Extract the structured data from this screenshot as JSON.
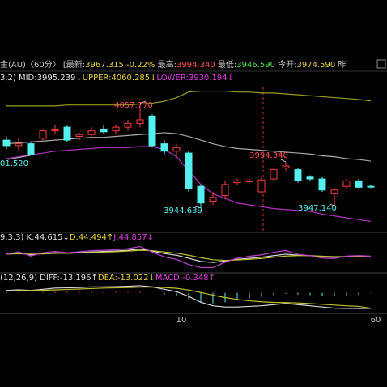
{
  "header": {
    "segments": [
      {
        "text": "金(AU)〈60分〉",
        "color": "#c8c8c8"
      },
      {
        "text": " [最新:",
        "color": "#c8c8c8"
      },
      {
        "text": "3967.315",
        "color": "#e8d040"
      },
      {
        "text": " -0.22%",
        "color": "#e8d040"
      },
      {
        "text": " 最高:",
        "color": "#c8c8c8"
      },
      {
        "text": "3994.340",
        "color": "#ff5050"
      },
      {
        "text": " 最低:",
        "color": "#c8c8c8"
      },
      {
        "text": "3946.590",
        "color": "#50e050"
      },
      {
        "text": " 今开:",
        "color": "#c8c8c8"
      },
      {
        "text": "3974.590",
        "color": "#e8d040"
      },
      {
        "text": " 昨",
        "color": "#c8c8c8"
      }
    ]
  },
  "legends": [
    [
      {
        "text": "3,2) MID:3995.239↓",
        "color": "#e0e0e0"
      },
      {
        "text": "UPPER:4060.285↓",
        "color": "#e8d040"
      },
      {
        "text": "LOWER:3930.194↓",
        "color": "#e040e0"
      }
    ],
    [
      {
        "text": "9,3,3) K:44.615↓",
        "color": "#e0e0e0"
      },
      {
        "text": "D:44.494↑",
        "color": "#e8d040"
      },
      {
        "text": "J:44.857↓",
        "color": "#e040e0"
      }
    ],
    [
      {
        "text": "(12,26,9) DIFF:-13.196↑",
        "color": "#e0e0e0"
      },
      {
        "text": "DEA:-13.022↓",
        "color": "#e8d040"
      },
      {
        "text": "MACD:-0.348↑",
        "color": "#e040e0"
      }
    ]
  ],
  "chart_data": [
    {
      "type": "candlestick",
      "ylim": [
        3920,
        4075
      ],
      "up_color": "#ff3c3c",
      "down_color": "#54f0f0",
      "categories": [
        null,
        null,
        null,
        null,
        null,
        null,
        null,
        null,
        null,
        null,
        null,
        null,
        null,
        null,
        "10",
        null,
        null,
        null,
        null,
        null,
        null,
        null,
        null,
        null,
        null,
        null,
        null,
        null,
        null,
        null,
        "60"
      ],
      "open": [
        4018,
        4012,
        4014,
        4020,
        4028,
        4032,
        4022,
        4024,
        4030,
        4028,
        4032,
        4036,
        4044,
        4014,
        4006,
        4004,
        3968,
        3952,
        3958,
        3972,
        3974,
        3962,
        3976,
        3988,
        3986,
        3978,
        3976,
        3960,
        3968,
        3974,
        3968
      ],
      "high": [
        4022,
        4020,
        4016,
        4030,
        4034,
        4034,
        4026,
        4032,
        4034,
        4034,
        4040,
        4057.77,
        4046,
        4018,
        4014,
        4006,
        3970,
        3962,
        3974,
        3976,
        3976,
        3978,
        3988,
        3994.34,
        3988,
        3980,
        3978,
        3966,
        3976,
        3976,
        3970
      ],
      "low": [
        4008,
        4006,
        4001.52,
        4018,
        4024,
        4016,
        4018,
        4020,
        4025,
        4024,
        4028,
        4032,
        4010,
        4002,
        4000,
        3962,
        3944.639,
        3948,
        3954,
        3970,
        3972,
        3960,
        3974,
        3985,
        3972,
        3974,
        3962,
        3947.14,
        3966,
        3966,
        3966
      ],
      "close": [
        4012,
        4014,
        4002,
        4028,
        4030,
        4018,
        4024,
        4028,
        4027,
        4032,
        4036,
        4040,
        4012,
        4006,
        4010,
        3966,
        3950,
        3956,
        3970,
        3974,
        3974,
        3975,
        3986,
        3990,
        3974,
        3976,
        3964,
        3964,
        3974,
        3967,
        3967.315
      ],
      "series": [
        {
          "name": "UPPER",
          "color": "#9a9a20",
          "values": [
            4055,
            4055,
            4055,
            4055,
            4055,
            4056,
            4056,
            4056,
            4056,
            4056,
            4056,
            4057,
            4058,
            4060,
            4064,
            4070,
            4071,
            4071,
            4071,
            4070,
            4070,
            4069,
            4069,
            4068,
            4067,
            4066,
            4065,
            4064,
            4063,
            4062,
            4060.285
          ]
        },
        {
          "name": "MID",
          "color": "#a8a8a8",
          "values": [
            4014,
            4015,
            4016,
            4017,
            4018,
            4019,
            4020,
            4021,
            4021,
            4022,
            4023,
            4024,
            4025,
            4026,
            4025,
            4022,
            4018,
            4014,
            4011,
            4009,
            4008,
            4007,
            4006,
            4005,
            4004,
            4003,
            4001,
            4000,
            3998,
            3997,
            3995.239
          ]
        },
        {
          "name": "LOWER",
          "color": "#b030c0",
          "values": [
            3998,
            4000,
            4002,
            4004,
            4006,
            4007,
            4008,
            4009,
            4010,
            4010,
            4010,
            4011,
            4011,
            4008,
            4000,
            3985,
            3970,
            3960,
            3955,
            3950,
            3948,
            3946,
            3944,
            3943,
            3942,
            3941,
            3938,
            3936,
            3934,
            3932,
            3930.194
          ]
        }
      ],
      "annotations": [
        "01.520",
        "4057.770",
        "3944.639",
        "3994.340",
        "3947.140"
      ]
    },
    {
      "type": "line",
      "ylim": [
        -20,
        110
      ],
      "series": [
        {
          "name": "K",
          "color": "#d8d8d8",
          "values": [
            55,
            60,
            52,
            58,
            62,
            60,
            63,
            66,
            68,
            70,
            74,
            80,
            70,
            58,
            50,
            35,
            20,
            15,
            22,
            30,
            35,
            40,
            48,
            55,
            50,
            48,
            42,
            40,
            44,
            46,
            44.615
          ]
        },
        {
          "name": "D",
          "color": "#c0c030",
          "values": [
            55,
            57,
            55,
            56,
            59,
            59,
            61,
            63,
            65,
            67,
            70,
            74,
            72,
            66,
            60,
            50,
            38,
            28,
            25,
            27,
            30,
            34,
            40,
            46,
            48,
            48,
            45,
            43,
            43,
            45,
            44.494
          ]
        },
        {
          "name": "J",
          "color": "#c040d0",
          "values": [
            55,
            66,
            46,
            62,
            68,
            62,
            67,
            72,
            74,
            76,
            82,
            92,
            66,
            42,
            30,
            5,
            -10,
            -10,
            16,
            36,
            45,
            52,
            64,
            73,
            54,
            48,
            36,
            34,
            46,
            48,
            44.857
          ]
        }
      ]
    },
    {
      "type": "macd",
      "ylim": [
        -16,
        8
      ],
      "up_color": "#ff3c3c",
      "down_color": "#54f0f0",
      "values": [
        0.5,
        0.7,
        0.1,
        0.9,
        1.5,
        1.4,
        1.3,
        1.4,
        1,
        1,
        1,
        1.2,
        0.1,
        -1.5,
        -2.8,
        -5.4,
        -8.3,
        -9,
        -8,
        -6.4,
        -4.7,
        -3.4,
        -1.9,
        -0.7,
        -1.4,
        -1.9,
        -2.3,
        -2.6,
        -2.2,
        -1.8,
        -0.348
      ],
      "series": [
        {
          "name": "DIFF",
          "color": "#d8d8d8",
          "values": [
            2,
            2.5,
            2,
            3,
            4,
            4.2,
            4.5,
            5,
            5,
            5.2,
            5.5,
            6,
            5,
            3,
            1,
            -3,
            -8,
            -11,
            -12,
            -12,
            -11.5,
            -11,
            -10,
            -9,
            -10,
            -11,
            -12,
            -13,
            -13.2,
            -13.3,
            -13.196
          ]
        },
        {
          "name": "DEA",
          "color": "#c0c030",
          "values": [
            1.5,
            1.8,
            1.9,
            2.1,
            2.5,
            2.8,
            3.2,
            3.6,
            4,
            4.2,
            4.5,
            4.8,
            4.9,
            4.5,
            3.8,
            2.4,
            0.3,
            -2,
            -4,
            -5.6,
            -6.8,
            -7.6,
            -8.1,
            -8.3,
            -8.6,
            -9.1,
            -9.7,
            -10.4,
            -11,
            -11.5,
            -13.022
          ]
        }
      ]
    }
  ]
}
